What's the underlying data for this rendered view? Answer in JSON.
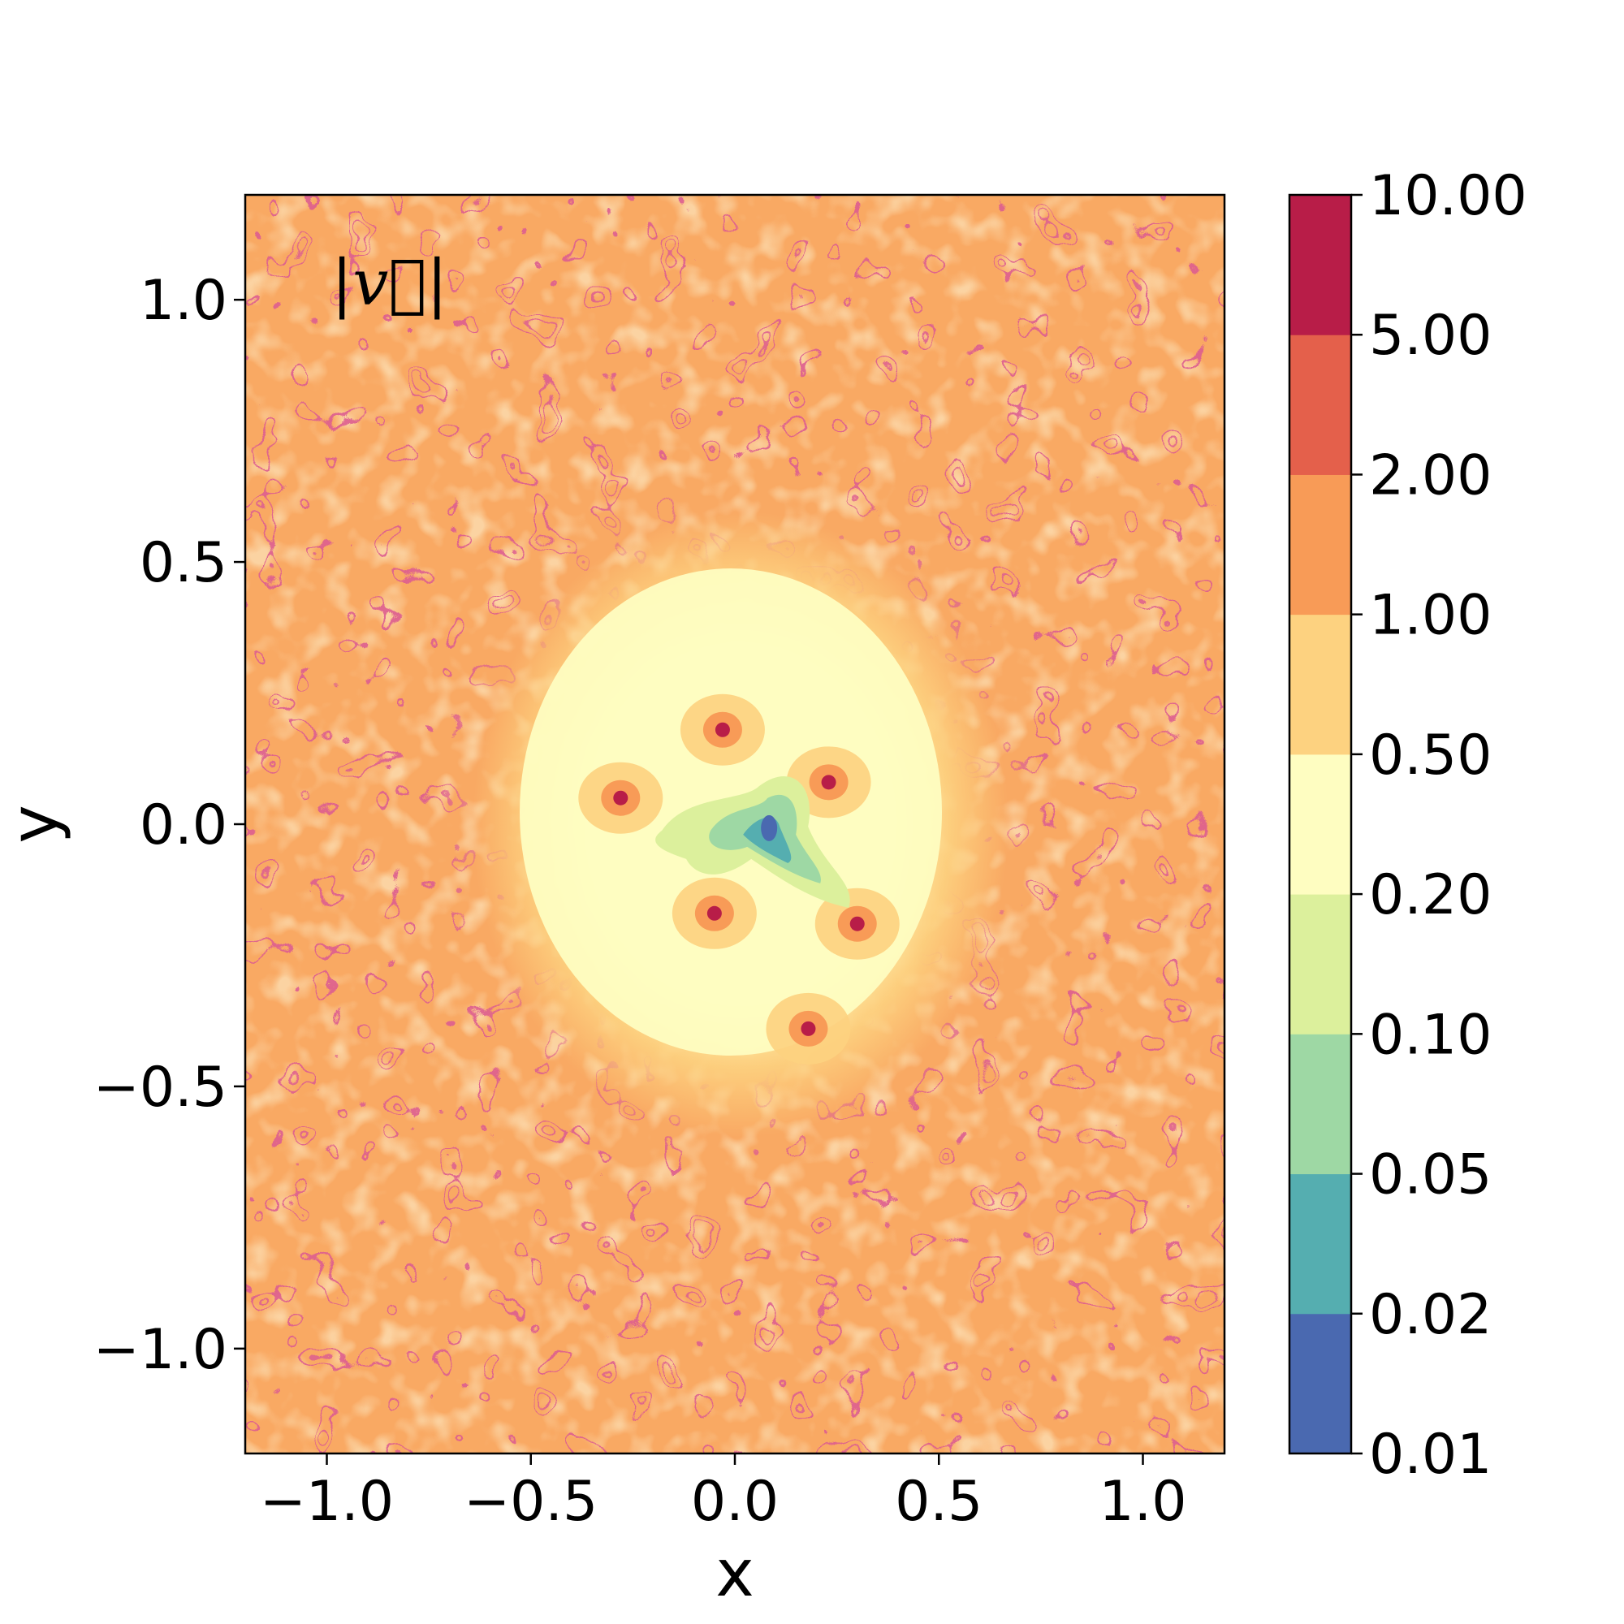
{
  "chart_data": {
    "type": "heatmap",
    "title": "",
    "annotation": "|v⃗|",
    "xlabel": "x",
    "ylabel": "y",
    "xlim": [
      -1.2,
      1.2
    ],
    "ylim": [
      -1.2,
      1.2
    ],
    "x_ticks": [
      {
        "value": -1.0,
        "label": "−1.0"
      },
      {
        "value": -0.5,
        "label": "−0.5"
      },
      {
        "value": 0.0,
        "label": "0.0"
      },
      {
        "value": 0.5,
        "label": "0.5"
      },
      {
        "value": 1.0,
        "label": "1.0"
      }
    ],
    "y_ticks": [
      {
        "value": 1.0,
        "label": "1.0"
      },
      {
        "value": 0.5,
        "label": "0.5"
      },
      {
        "value": 0.0,
        "label": "0.0"
      },
      {
        "value": -0.5,
        "label": "−0.5"
      },
      {
        "value": -1.0,
        "label": "−1.0"
      }
    ],
    "colorbar": {
      "levels": [
        0.01,
        0.02,
        0.05,
        0.1,
        0.2,
        0.5,
        1.0,
        2.0,
        5.0,
        10.0
      ],
      "tick_labels": [
        "0.01",
        "0.02",
        "0.05",
        "0.10",
        "0.20",
        "0.50",
        "1.00",
        "2.00",
        "5.00",
        "10.00"
      ],
      "colors": [
        "#4a69b0",
        "#55aeb0",
        "#9ed8a4",
        "#dcf09c",
        "#fefdc1",
        "#fdd280",
        "#f89b57",
        "#e4604b",
        "#b81d48"
      ]
    },
    "grid": false,
    "features": {
      "central_low_speed_radius": 0.5,
      "hot_spots": [
        {
          "x": -0.03,
          "y": 0.18
        },
        {
          "x": 0.23,
          "y": 0.08
        },
        {
          "x": -0.28,
          "y": 0.05
        },
        {
          "x": -0.05,
          "y": -0.17
        },
        {
          "x": 0.3,
          "y": -0.19
        },
        {
          "x": 0.18,
          "y": -0.39
        }
      ],
      "minimum_region": {
        "x": 0.06,
        "y": -0.02
      }
    }
  }
}
